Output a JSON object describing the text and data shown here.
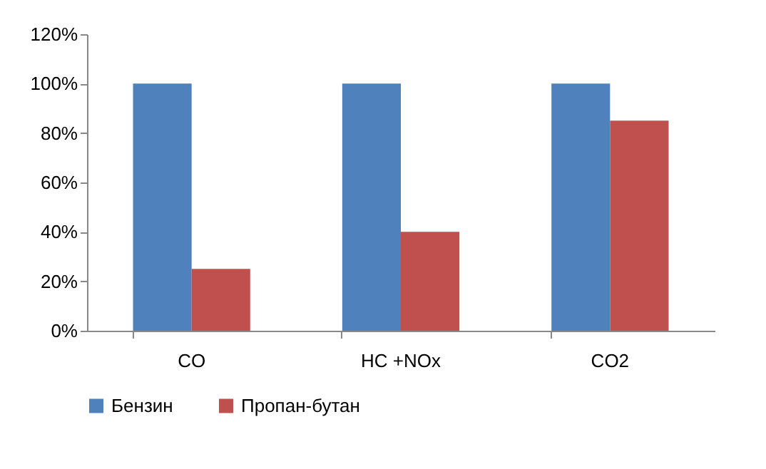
{
  "chart_data": {
    "type": "bar",
    "categories": [
      "CO",
      "HC +NOx",
      "CO2"
    ],
    "series": [
      {
        "name": "Бензин",
        "color": "#4f81bd",
        "values": [
          100,
          100,
          100
        ]
      },
      {
        "name": "Пропан-бутан",
        "color": "#c0504d",
        "values": [
          25,
          40,
          85
        ]
      }
    ],
    "ylim": [
      0,
      120
    ],
    "yticks": [
      {
        "value": 0,
        "label": "0%"
      },
      {
        "value": 20,
        "label": "20%"
      },
      {
        "value": 40,
        "label": "40%"
      },
      {
        "value": 60,
        "label": "60%"
      },
      {
        "value": 80,
        "label": "80%"
      },
      {
        "value": 100,
        "label": "100%"
      },
      {
        "value": 120,
        "label": "120%"
      }
    ],
    "grid": false,
    "legend": "bottom"
  }
}
